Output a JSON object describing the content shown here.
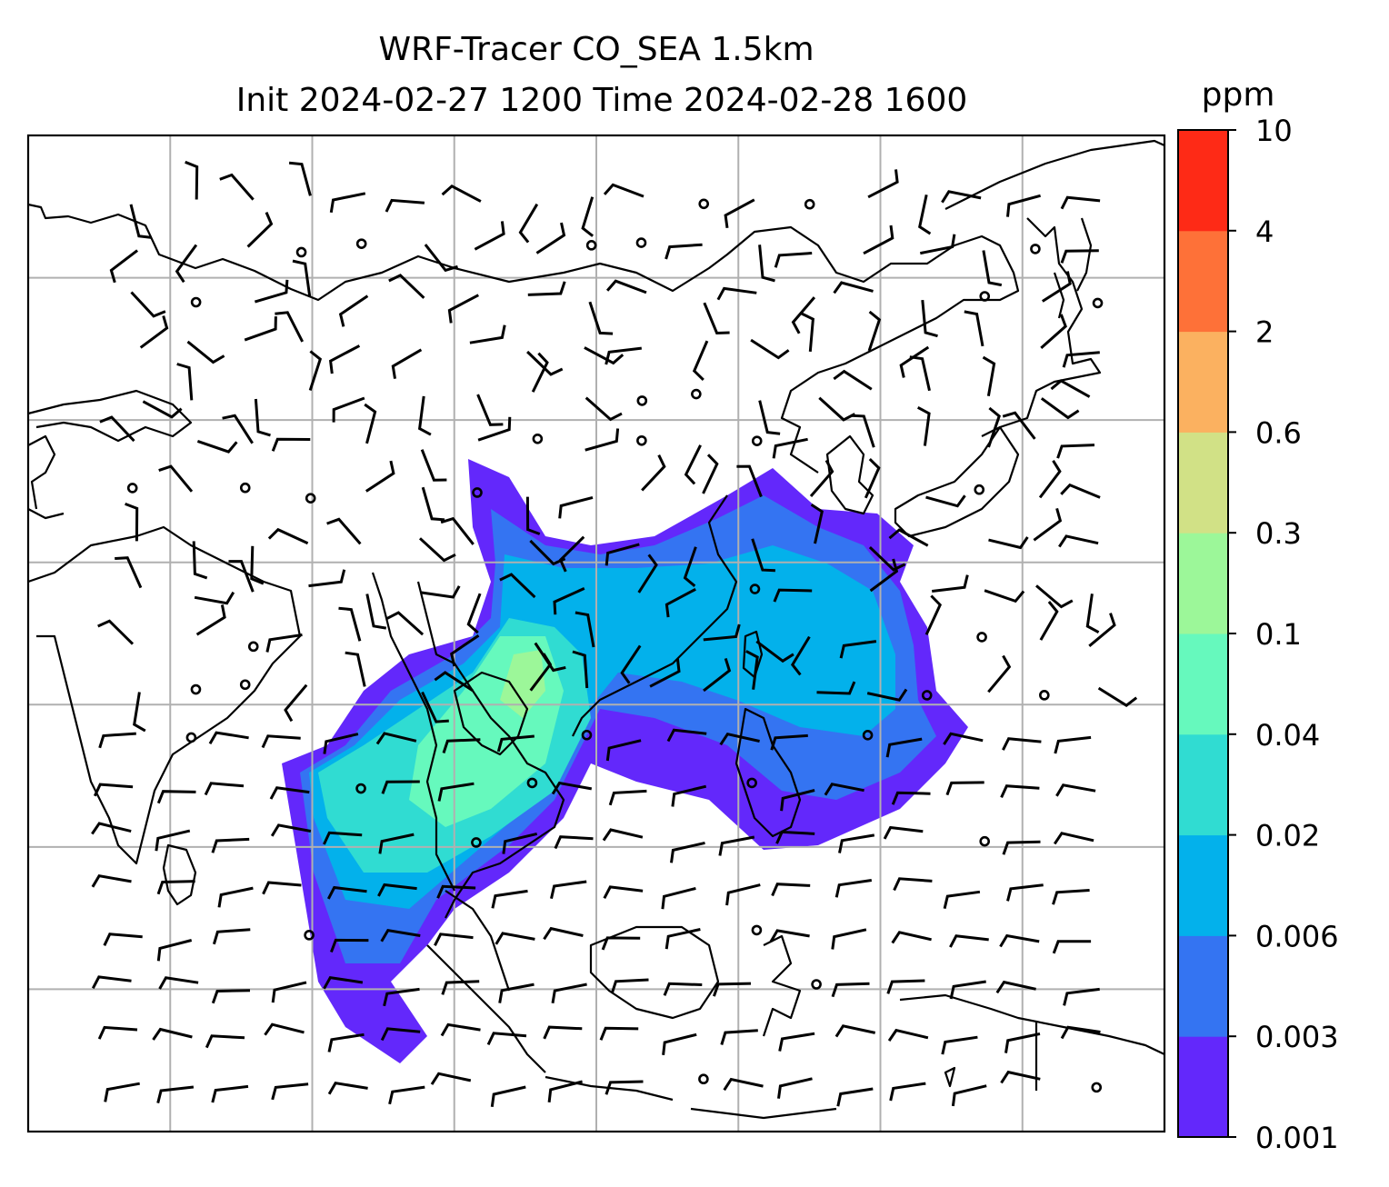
{
  "chart_data": {
    "type": "heatmap",
    "title": "WRF-Tracer CO_SEA 1.5km",
    "subtitle": "Init 2024-02-27 1200 Time 2024-02-28 1600",
    "colorbar": {
      "unit": "ppm",
      "levels": [
        "0.001",
        "0.003",
        "0.006",
        "0.02",
        "0.04",
        "0.1",
        "0.3",
        "0.6",
        "2",
        "4",
        "10"
      ],
      "colors": [
        "#6328fb",
        "#3474f2",
        "#03b1eb",
        "#30dcd2",
        "#66f9bd",
        "#9cf799",
        "#d1e186",
        "#fbb160",
        "#fe7138",
        "#fe2a16"
      ]
    },
    "map": {
      "grid": true,
      "gridlines_x": 7,
      "gridlines_y": 6,
      "wind_barbs": true,
      "calm_markers": true
    },
    "colors": {
      "coast": "#000000",
      "grid": "#b0b0b0",
      "background": "#ffffff"
    }
  }
}
